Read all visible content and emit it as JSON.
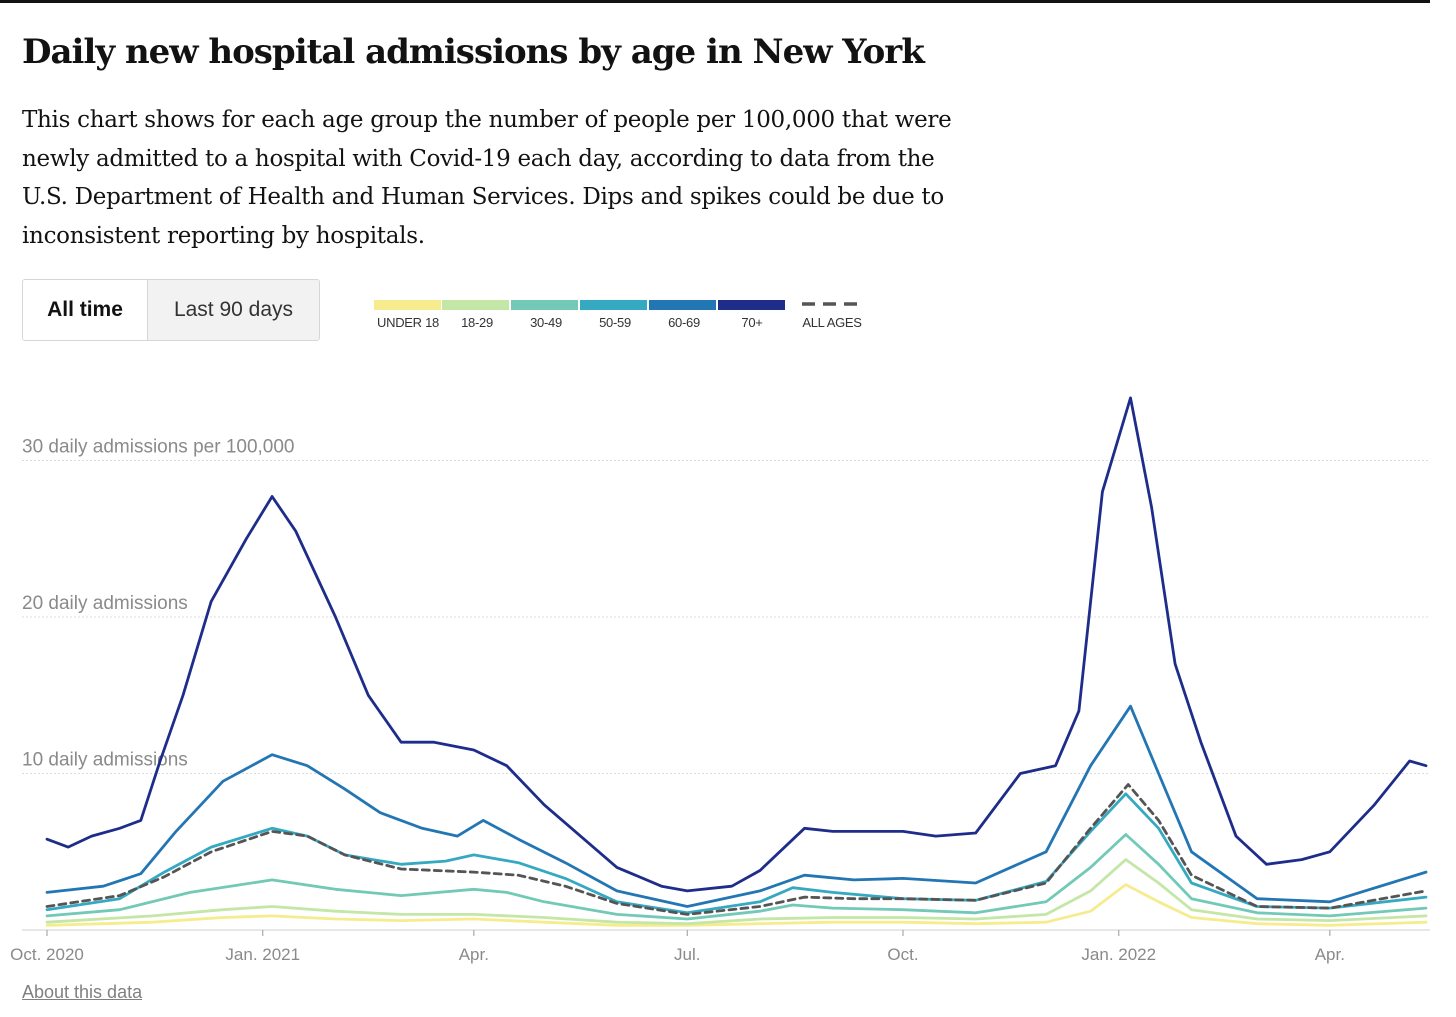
{
  "title": "Daily new hospital admissions by age in New York",
  "description": "This chart shows for each age group the number of people per 100,000 that were newly admitted to a hospital with Covid-19 each day, according to data from the U.S. Department of Health and Human Services. Dips and spikes could be due to inconsistent reporting by hospitals.",
  "toggle": {
    "all_time": "All time",
    "last_90_days": "Last 90 days",
    "selected": "All time"
  },
  "legend": [
    {
      "label": "UNDER 18",
      "color": "#f6ec8d"
    },
    {
      "label": "18-29",
      "color": "#c4e6a6"
    },
    {
      "label": "30-49",
      "color": "#72c9b6"
    },
    {
      "label": "50-59",
      "color": "#35a9c2"
    },
    {
      "label": "60-69",
      "color": "#2276b3"
    },
    {
      "label": "70+",
      "color": "#1e2c8a"
    },
    {
      "label": "ALL AGES",
      "color": "#555555"
    }
  ],
  "about_link": "About this data",
  "chart_data": {
    "type": "line",
    "x_start": "2020-10-01",
    "x_end": "2022-05-12",
    "ylim": [
      0,
      36
    ],
    "y_ticks": [
      {
        "value": 10,
        "label": "10 daily admissions"
      },
      {
        "value": 20,
        "label": "20 daily admissions"
      },
      {
        "value": 30,
        "label": "30 daily admissions per 100,000"
      }
    ],
    "x_ticks": [
      {
        "date": "2020-10-01",
        "label": "Oct. 2020"
      },
      {
        "date": "2021-01-01",
        "label": "Jan. 2021"
      },
      {
        "date": "2021-04-01",
        "label": "Apr."
      },
      {
        "date": "2021-07-01",
        "label": "Jul."
      },
      {
        "date": "2021-10-01",
        "label": "Oct."
      },
      {
        "date": "2022-01-01",
        "label": "Jan. 2022"
      },
      {
        "date": "2022-04-01",
        "label": "Apr."
      }
    ],
    "grid": true,
    "series": [
      {
        "name": "UNDER 18",
        "color": "#f6ec8d",
        "dashed": false,
        "points": [
          [
            "2020-10-01",
            0.3
          ],
          [
            "2020-11-15",
            0.5
          ],
          [
            "2020-12-15",
            0.8
          ],
          [
            "2021-01-05",
            0.9
          ],
          [
            "2021-02-01",
            0.7
          ],
          [
            "2021-03-01",
            0.6
          ],
          [
            "2021-04-01",
            0.7
          ],
          [
            "2021-05-01",
            0.5
          ],
          [
            "2021-06-01",
            0.3
          ],
          [
            "2021-07-01",
            0.3
          ],
          [
            "2021-08-01",
            0.4
          ],
          [
            "2021-09-01",
            0.5
          ],
          [
            "2021-10-01",
            0.5
          ],
          [
            "2021-11-01",
            0.4
          ],
          [
            "2021-12-01",
            0.5
          ],
          [
            "2021-12-20",
            1.2
          ],
          [
            "2022-01-04",
            2.9
          ],
          [
            "2022-01-18",
            1.8
          ],
          [
            "2022-02-01",
            0.8
          ],
          [
            "2022-03-01",
            0.4
          ],
          [
            "2022-04-01",
            0.3
          ],
          [
            "2022-05-12",
            0.5
          ]
        ]
      },
      {
        "name": "18-29",
        "color": "#c4e6a6",
        "dashed": false,
        "points": [
          [
            "2020-10-01",
            0.5
          ],
          [
            "2020-11-15",
            0.9
          ],
          [
            "2020-12-15",
            1.3
          ],
          [
            "2021-01-05",
            1.5
          ],
          [
            "2021-02-01",
            1.2
          ],
          [
            "2021-03-01",
            1.0
          ],
          [
            "2021-04-01",
            1.0
          ],
          [
            "2021-05-01",
            0.8
          ],
          [
            "2021-06-01",
            0.5
          ],
          [
            "2021-07-01",
            0.4
          ],
          [
            "2021-08-01",
            0.7
          ],
          [
            "2021-09-01",
            0.8
          ],
          [
            "2021-10-01",
            0.8
          ],
          [
            "2021-11-01",
            0.7
          ],
          [
            "2021-12-01",
            1.0
          ],
          [
            "2021-12-20",
            2.5
          ],
          [
            "2022-01-04",
            4.5
          ],
          [
            "2022-01-18",
            3.0
          ],
          [
            "2022-02-01",
            1.3
          ],
          [
            "2022-03-01",
            0.7
          ],
          [
            "2022-04-01",
            0.6
          ],
          [
            "2022-05-12",
            0.9
          ]
        ]
      },
      {
        "name": "30-49",
        "color": "#72c9b6",
        "dashed": false,
        "points": [
          [
            "2020-10-01",
            0.9
          ],
          [
            "2020-11-01",
            1.3
          ],
          [
            "2020-12-01",
            2.4
          ],
          [
            "2021-01-05",
            3.2
          ],
          [
            "2021-02-01",
            2.6
          ],
          [
            "2021-03-01",
            2.2
          ],
          [
            "2021-04-01",
            2.6
          ],
          [
            "2021-04-15",
            2.4
          ],
          [
            "2021-05-01",
            1.8
          ],
          [
            "2021-06-01",
            1.0
          ],
          [
            "2021-07-01",
            0.7
          ],
          [
            "2021-08-01",
            1.2
          ],
          [
            "2021-08-15",
            1.6
          ],
          [
            "2021-09-01",
            1.4
          ],
          [
            "2021-10-01",
            1.3
          ],
          [
            "2021-11-01",
            1.1
          ],
          [
            "2021-12-01",
            1.8
          ],
          [
            "2021-12-20",
            4.0
          ],
          [
            "2022-01-04",
            6.1
          ],
          [
            "2022-01-18",
            4.2
          ],
          [
            "2022-02-01",
            2.0
          ],
          [
            "2022-03-01",
            1.1
          ],
          [
            "2022-04-01",
            0.9
          ],
          [
            "2022-05-12",
            1.4
          ]
        ]
      },
      {
        "name": "50-59",
        "color": "#35a9c2",
        "dashed": false,
        "points": [
          [
            "2020-10-01",
            1.3
          ],
          [
            "2020-11-01",
            2.0
          ],
          [
            "2020-11-20",
            3.7
          ],
          [
            "2020-12-10",
            5.3
          ],
          [
            "2021-01-05",
            6.5
          ],
          [
            "2021-01-20",
            6.0
          ],
          [
            "2021-02-05",
            4.8
          ],
          [
            "2021-03-01",
            4.2
          ],
          [
            "2021-03-20",
            4.4
          ],
          [
            "2021-04-01",
            4.8
          ],
          [
            "2021-04-20",
            4.3
          ],
          [
            "2021-05-10",
            3.3
          ],
          [
            "2021-06-01",
            1.8
          ],
          [
            "2021-07-01",
            1.1
          ],
          [
            "2021-08-01",
            1.8
          ],
          [
            "2021-08-15",
            2.7
          ],
          [
            "2021-09-01",
            2.4
          ],
          [
            "2021-10-01",
            2.0
          ],
          [
            "2021-11-01",
            1.9
          ],
          [
            "2021-12-01",
            3.1
          ],
          [
            "2021-12-20",
            6.3
          ],
          [
            "2022-01-04",
            8.7
          ],
          [
            "2022-01-18",
            6.5
          ],
          [
            "2022-02-01",
            3.0
          ],
          [
            "2022-03-01",
            1.5
          ],
          [
            "2022-04-01",
            1.4
          ],
          [
            "2022-05-12",
            2.1
          ]
        ]
      },
      {
        "name": "60-69",
        "color": "#2276b3",
        "dashed": false,
        "points": [
          [
            "2020-10-01",
            2.4
          ],
          [
            "2020-10-25",
            2.8
          ],
          [
            "2020-11-10",
            3.6
          ],
          [
            "2020-11-25",
            6.3
          ],
          [
            "2020-12-15",
            9.5
          ],
          [
            "2021-01-05",
            11.2
          ],
          [
            "2021-01-20",
            10.5
          ],
          [
            "2021-02-05",
            9.0
          ],
          [
            "2021-02-20",
            7.5
          ],
          [
            "2021-03-10",
            6.5
          ],
          [
            "2021-03-25",
            6.0
          ],
          [
            "2021-04-05",
            7.0
          ],
          [
            "2021-04-20",
            5.8
          ],
          [
            "2021-05-10",
            4.3
          ],
          [
            "2021-06-01",
            2.5
          ],
          [
            "2021-07-01",
            1.5
          ],
          [
            "2021-08-01",
            2.5
          ],
          [
            "2021-08-20",
            3.5
          ],
          [
            "2021-09-10",
            3.2
          ],
          [
            "2021-10-01",
            3.3
          ],
          [
            "2021-11-01",
            3.0
          ],
          [
            "2021-12-01",
            5.0
          ],
          [
            "2021-12-20",
            10.5
          ],
          [
            "2022-01-06",
            14.3
          ],
          [
            "2022-01-18",
            10.0
          ],
          [
            "2022-02-01",
            5.0
          ],
          [
            "2022-03-01",
            2.0
          ],
          [
            "2022-04-01",
            1.8
          ],
          [
            "2022-05-12",
            3.7
          ]
        ]
      },
      {
        "name": "70+",
        "color": "#1e2c8a",
        "dashed": false,
        "points": [
          [
            "2020-10-01",
            5.8
          ],
          [
            "2020-10-10",
            5.3
          ],
          [
            "2020-10-20",
            6.0
          ],
          [
            "2020-11-01",
            6.5
          ],
          [
            "2020-11-10",
            7.0
          ],
          [
            "2020-11-18",
            10.7
          ],
          [
            "2020-11-28",
            15.0
          ],
          [
            "2020-12-10",
            21.0
          ],
          [
            "2020-12-25",
            25.0
          ],
          [
            "2021-01-05",
            27.7
          ],
          [
            "2021-01-15",
            25.5
          ],
          [
            "2021-02-01",
            20.0
          ],
          [
            "2021-02-15",
            15.0
          ],
          [
            "2021-03-01",
            12.0
          ],
          [
            "2021-03-15",
            12.0
          ],
          [
            "2021-04-01",
            11.5
          ],
          [
            "2021-04-15",
            10.5
          ],
          [
            "2021-05-01",
            8.0
          ],
          [
            "2021-06-01",
            4.0
          ],
          [
            "2021-06-20",
            2.8
          ],
          [
            "2021-07-01",
            2.5
          ],
          [
            "2021-07-20",
            2.8
          ],
          [
            "2021-08-01",
            3.8
          ],
          [
            "2021-08-20",
            6.5
          ],
          [
            "2021-09-01",
            6.3
          ],
          [
            "2021-10-01",
            6.3
          ],
          [
            "2021-10-15",
            6.0
          ],
          [
            "2021-11-01",
            6.2
          ],
          [
            "2021-11-20",
            10.0
          ],
          [
            "2021-12-05",
            10.5
          ],
          [
            "2021-12-15",
            14.0
          ],
          [
            "2021-12-25",
            28.0
          ],
          [
            "2022-01-06",
            34.0
          ],
          [
            "2022-01-15",
            27.0
          ],
          [
            "2022-01-25",
            17.0
          ],
          [
            "2022-02-05",
            12.0
          ],
          [
            "2022-02-20",
            6.0
          ],
          [
            "2022-03-05",
            4.2
          ],
          [
            "2022-03-20",
            4.5
          ],
          [
            "2022-04-01",
            5.0
          ],
          [
            "2022-04-20",
            8.0
          ],
          [
            "2022-05-05",
            10.8
          ],
          [
            "2022-05-12",
            10.5
          ]
        ]
      },
      {
        "name": "ALL AGES",
        "color": "#555555",
        "dashed": true,
        "points": [
          [
            "2020-10-01",
            1.5
          ],
          [
            "2020-11-01",
            2.2
          ],
          [
            "2020-11-20",
            3.4
          ],
          [
            "2020-12-10",
            5.0
          ],
          [
            "2021-01-05",
            6.3
          ],
          [
            "2021-01-20",
            6.0
          ],
          [
            "2021-02-05",
            4.8
          ],
          [
            "2021-03-01",
            3.9
          ],
          [
            "2021-04-01",
            3.7
          ],
          [
            "2021-04-20",
            3.5
          ],
          [
            "2021-05-10",
            2.8
          ],
          [
            "2021-06-01",
            1.7
          ],
          [
            "2021-07-01",
            1.0
          ],
          [
            "2021-08-01",
            1.5
          ],
          [
            "2021-08-20",
            2.1
          ],
          [
            "2021-09-10",
            2.0
          ],
          [
            "2021-10-01",
            2.0
          ],
          [
            "2021-11-01",
            1.9
          ],
          [
            "2021-12-01",
            3.0
          ],
          [
            "2021-12-20",
            6.5
          ],
          [
            "2022-01-05",
            9.3
          ],
          [
            "2022-01-18",
            7.0
          ],
          [
            "2022-02-01",
            3.5
          ],
          [
            "2022-03-01",
            1.5
          ],
          [
            "2022-04-01",
            1.4
          ],
          [
            "2022-05-12",
            2.5
          ]
        ]
      }
    ]
  }
}
